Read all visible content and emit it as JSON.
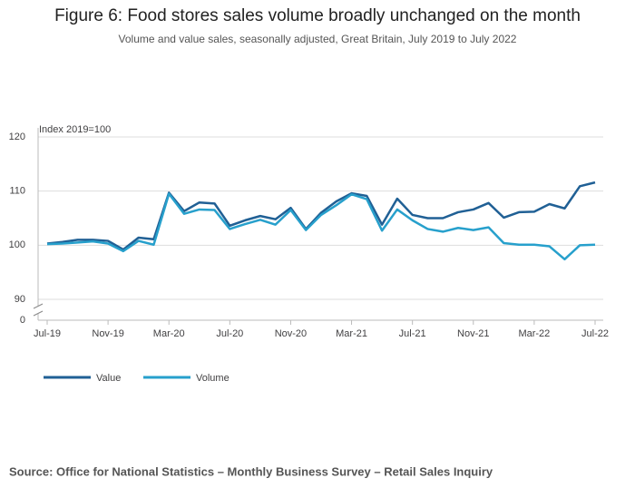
{
  "chart_data": {
    "type": "line",
    "title": "Figure 6: Food stores sales volume broadly unchanged on the month",
    "subtitle": "Volume and value sales, seasonally adjusted, Great Britain, July 2019 to July 2022",
    "y_label": "Index 2019=100",
    "source": "Source: Office for National Statistics – Monthly Business Survey – Retail Sales Inquiry",
    "categories": [
      "Jul-19",
      null,
      null,
      null,
      "Nov-19",
      null,
      null,
      null,
      "Mar-20",
      null,
      null,
      null,
      "Jul-20",
      null,
      null,
      null,
      "Nov-20",
      null,
      null,
      null,
      "Mar-21",
      null,
      null,
      null,
      "Jul-21",
      null,
      null,
      null,
      "Nov-21",
      null,
      null,
      null,
      "Mar-22",
      null,
      null,
      null,
      "Jul-22"
    ],
    "series": [
      {
        "name": "Value",
        "color": "#206095",
        "values": [
          100.3,
          100.6,
          101.0,
          101.0,
          100.8,
          99.2,
          101.4,
          101.1,
          109.7,
          106.3,
          107.9,
          107.7,
          103.6,
          104.6,
          105.4,
          104.8,
          106.9,
          103.0,
          106.0,
          108.1,
          109.6,
          109.1,
          103.8,
          108.6,
          105.6,
          105.0,
          105.0,
          106.1,
          106.6,
          107.8,
          105.1,
          106.1,
          106.2,
          107.6,
          106.8,
          110.9,
          111.6
        ]
      },
      {
        "name": "Volume",
        "color": "#27a0cc",
        "values": [
          100.2,
          100.3,
          100.5,
          100.7,
          100.3,
          98.9,
          100.8,
          100.1,
          109.5,
          105.8,
          106.6,
          106.5,
          103.0,
          103.9,
          104.7,
          103.8,
          106.5,
          102.8,
          105.6,
          107.4,
          109.4,
          108.5,
          102.7,
          106.6,
          104.6,
          103.0,
          102.5,
          103.2,
          102.8,
          103.3,
          100.4,
          100.1,
          100.1,
          99.8,
          97.4,
          100.0,
          100.1
        ]
      }
    ],
    "ylim": [
      90,
      120
    ],
    "yticks": [
      0,
      90,
      100,
      110,
      120
    ],
    "axis_break": true,
    "grid": true
  }
}
